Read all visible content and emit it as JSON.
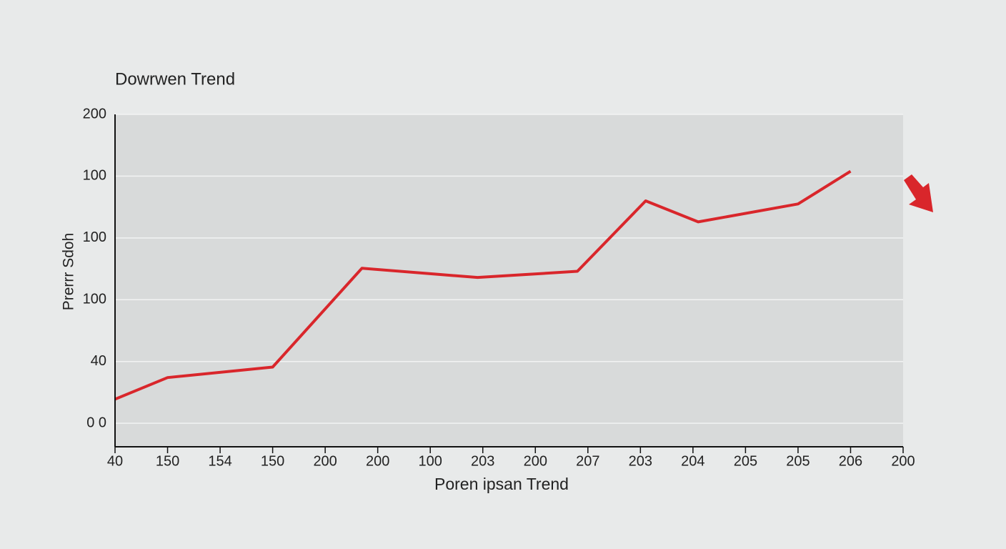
{
  "chart_data": {
    "type": "line",
    "title": "Dowrwen Trend",
    "x_label": "Poren ipsan Trend",
    "y_label": "Prerrr Sdoh",
    "xlim": [
      0,
      15
    ],
    "xticks": [
      {
        "value": 0,
        "label": "40"
      },
      {
        "value": 1,
        "label": "150"
      },
      {
        "value": 2,
        "label": "154"
      },
      {
        "value": 3,
        "label": "150"
      },
      {
        "value": 4,
        "label": "200"
      },
      {
        "value": 5,
        "label": "200"
      },
      {
        "value": 6,
        "label": "100"
      },
      {
        "value": 7,
        "label": "203"
      },
      {
        "value": 8,
        "label": "200"
      },
      {
        "value": 9,
        "label": "207"
      },
      {
        "value": 10,
        "label": "203"
      },
      {
        "value": 11,
        "label": "204"
      },
      {
        "value": 12,
        "label": "205"
      },
      {
        "value": 13,
        "label": "205"
      },
      {
        "value": 14,
        "label": "206"
      },
      {
        "value": 15,
        "label": "200"
      }
    ],
    "ylim": [
      -0.38,
      5
    ],
    "yticks": [
      {
        "value": 0,
        "label": "0 0"
      },
      {
        "value": 1,
        "label": "40"
      },
      {
        "value": 2,
        "label": "100"
      },
      {
        "value": 3,
        "label": "100"
      },
      {
        "value": 4,
        "label": "100"
      },
      {
        "value": 5,
        "label": "200"
      }
    ],
    "grid": true,
    "series": [
      {
        "color": "#d9262b",
        "x": [
          0,
          1,
          3,
          4.7,
          6.9,
          8.8,
          10.1,
          11.1,
          13,
          14
        ],
        "values": [
          0.39,
          0.74,
          0.91,
          2.51,
          2.36,
          2.46,
          3.6,
          3.26,
          3.55,
          4.08
        ]
      }
    ]
  }
}
